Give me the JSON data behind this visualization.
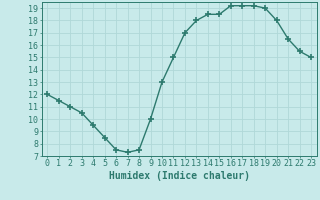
{
  "x": [
    0,
    1,
    2,
    3,
    4,
    5,
    6,
    7,
    8,
    9,
    10,
    11,
    12,
    13,
    14,
    15,
    16,
    17,
    18,
    19,
    20,
    21,
    22,
    23
  ],
  "y": [
    12,
    11.5,
    11,
    10.5,
    9.5,
    8.5,
    7.5,
    7.3,
    7.5,
    10,
    13,
    15,
    17,
    18,
    18.5,
    18.5,
    19.2,
    19.2,
    19.2,
    19,
    18,
    16.5,
    15.5,
    15
  ],
  "line_color": "#2d7a6e",
  "marker": "+",
  "markersize": 4,
  "linewidth": 1.0,
  "xlabel": "Humidex (Indice chaleur)",
  "xlim": [
    -0.5,
    23.5
  ],
  "ylim": [
    7,
    19.5
  ],
  "yticks": [
    7,
    8,
    9,
    10,
    11,
    12,
    13,
    14,
    15,
    16,
    17,
    18,
    19
  ],
  "xticks": [
    0,
    1,
    2,
    3,
    4,
    5,
    6,
    7,
    8,
    9,
    10,
    11,
    12,
    13,
    14,
    15,
    16,
    17,
    18,
    19,
    20,
    21,
    22,
    23
  ],
  "bg_color": "#c8eaea",
  "grid_color": "#b0d8d8",
  "tick_color": "#2d7a6e",
  "label_color": "#2d7a6e",
  "font_size": 6,
  "xlabel_fontsize": 7
}
